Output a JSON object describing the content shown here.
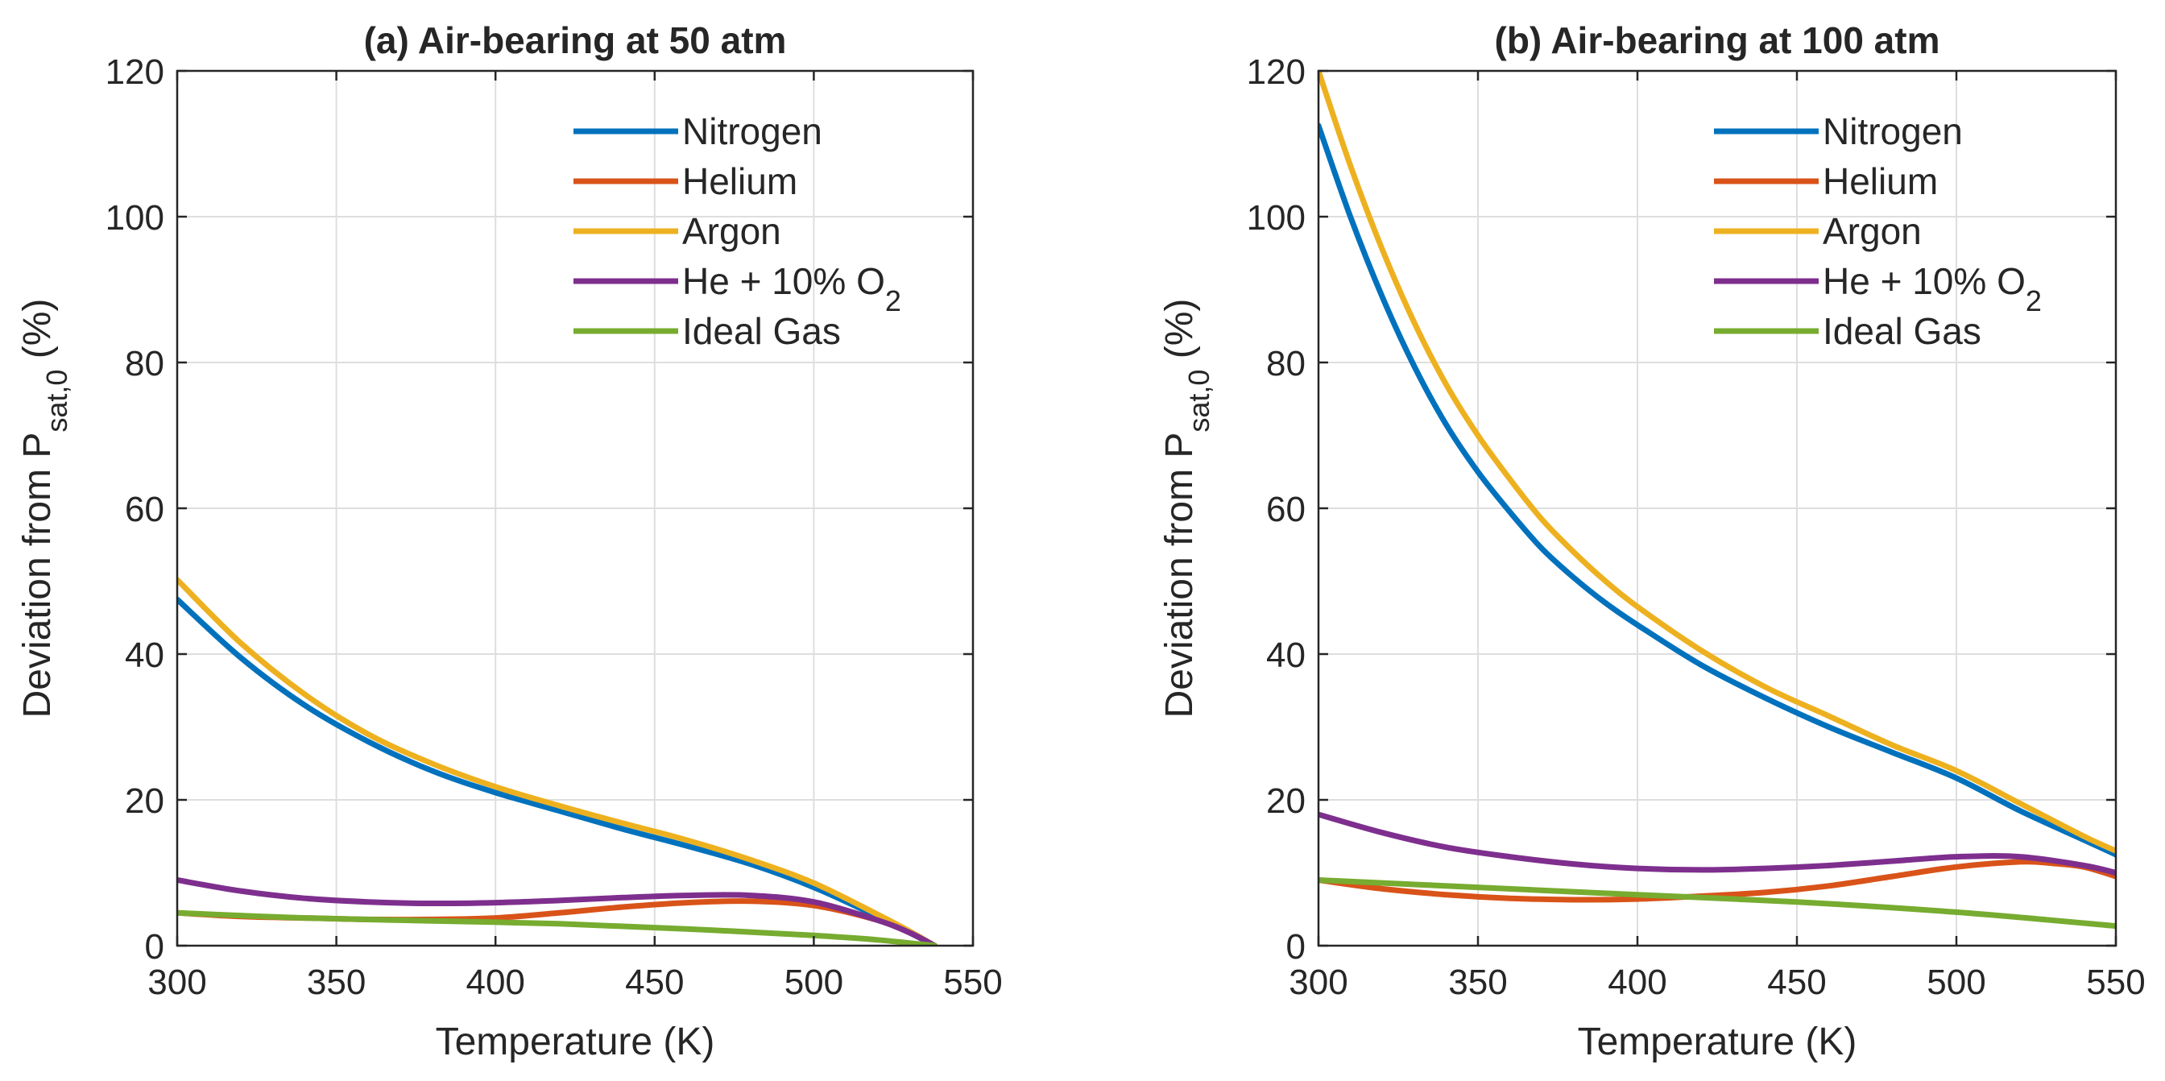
{
  "chart_data": [
    {
      "type": "line",
      "title": "(a) Air-bearing at 50 atm",
      "xlabel": "Temperature (K)",
      "ylabel": {
        "main": "Deviation from P",
        "sub": "sat,0",
        "suffix": " (%)"
      },
      "xlim": [
        300,
        550
      ],
      "ylim": [
        0,
        120
      ],
      "xticks": [
        300,
        350,
        400,
        450,
        500,
        550
      ],
      "yticks": [
        0,
        20,
        40,
        60,
        80,
        100,
        120
      ],
      "grid": true,
      "legend_position": "top-right",
      "series": [
        {
          "name": "Nitrogen",
          "color": "#0072BD",
          "x": [
            300,
            320,
            340,
            360,
            380,
            400,
            420,
            440,
            460,
            480,
            500,
            520,
            530,
            538
          ],
          "y": [
            47.5,
            39.5,
            33,
            28,
            24,
            21,
            18.5,
            16,
            13.7,
            11.2,
            8,
            4,
            1.8,
            0
          ]
        },
        {
          "name": "Helium",
          "color": "#D95319",
          "x": [
            300,
            320,
            340,
            360,
            380,
            400,
            420,
            440,
            460,
            480,
            500,
            520,
            530,
            538
          ],
          "y": [
            4.5,
            4.0,
            3.8,
            3.6,
            3.6,
            3.8,
            4.5,
            5.3,
            5.9,
            6.1,
            5.5,
            3.5,
            1.8,
            0
          ]
        },
        {
          "name": "Argon",
          "color": "#EDB120",
          "x": [
            300,
            320,
            340,
            360,
            380,
            400,
            420,
            440,
            460,
            480,
            500,
            520,
            530,
            538
          ],
          "y": [
            50.2,
            41.5,
            34.5,
            29,
            25,
            21.8,
            19.2,
            16.8,
            14.5,
            11.8,
            8.6,
            4.3,
            2,
            0
          ]
        },
        {
          "name": "He + 10% O",
          "sub": "2",
          "color": "#7E2F8E",
          "x": [
            300,
            320,
            340,
            360,
            380,
            400,
            420,
            440,
            460,
            480,
            500,
            520,
            530,
            538
          ],
          "y": [
            9,
            7.5,
            6.5,
            6,
            5.8,
            5.9,
            6.2,
            6.6,
            6.9,
            6.9,
            6,
            3.5,
            1.8,
            0
          ]
        },
        {
          "name": "Ideal Gas",
          "color": "#77AC30",
          "x": [
            300,
            340,
            380,
            420,
            460,
            500,
            520,
            538
          ],
          "y": [
            4.5,
            3.8,
            3.4,
            3,
            2.3,
            1.4,
            0.8,
            0
          ]
        }
      ]
    },
    {
      "type": "line",
      "title": "(b) Air-bearing at 100 atm",
      "xlabel": "Temperature (K)",
      "ylabel": {
        "main": "Deviation from P",
        "sub": "sat,0",
        "suffix": " (%)"
      },
      "xlim": [
        300,
        550
      ],
      "ylim": [
        0,
        120
      ],
      "xticks": [
        300,
        350,
        400,
        450,
        500,
        550
      ],
      "yticks": [
        0,
        20,
        40,
        60,
        80,
        100,
        120
      ],
      "grid": true,
      "legend_position": "top-right",
      "series": [
        {
          "name": "Nitrogen",
          "color": "#0072BD",
          "x": [
            300,
            310,
            320,
            330,
            340,
            350,
            360,
            370,
            380,
            390,
            400,
            420,
            440,
            460,
            480,
            500,
            520,
            540,
            550
          ],
          "y": [
            112.5,
            100,
            89,
            79.5,
            71.5,
            65,
            59.5,
            54.5,
            50.5,
            47,
            44,
            38.5,
            34,
            30,
            26.5,
            23,
            18.5,
            14.5,
            12.5
          ]
        },
        {
          "name": "Helium",
          "color": "#D95319",
          "x": [
            300,
            320,
            340,
            360,
            380,
            400,
            420,
            440,
            460,
            480,
            500,
            520,
            530,
            540,
            550
          ],
          "y": [
            9,
            7.8,
            7,
            6.5,
            6.3,
            6.4,
            6.8,
            7.3,
            8.2,
            9.5,
            10.8,
            11.5,
            11.3,
            10.8,
            9.5
          ]
        },
        {
          "name": "Argon",
          "color": "#EDB120",
          "x": [
            300,
            310,
            320,
            330,
            340,
            350,
            360,
            370,
            380,
            390,
            400,
            420,
            440,
            460,
            480,
            500,
            520,
            540,
            550
          ],
          "y": [
            120,
            107,
            95.5,
            85.5,
            77,
            70,
            64,
            58.5,
            54,
            50,
            46.5,
            40.5,
            35.5,
            31.5,
            27.5,
            24,
            19.5,
            15,
            13
          ]
        },
        {
          "name": "He + 10% O",
          "sub": "2",
          "color": "#7E2F8E",
          "x": [
            300,
            320,
            340,
            360,
            380,
            400,
            420,
            440,
            460,
            480,
            500,
            520,
            540,
            550
          ],
          "y": [
            18,
            15.5,
            13.5,
            12.2,
            11.2,
            10.6,
            10.4,
            10.6,
            11,
            11.6,
            12.2,
            12.2,
            11,
            10
          ]
        },
        {
          "name": "Ideal Gas",
          "color": "#77AC30",
          "x": [
            300,
            350,
            400,
            450,
            500,
            550
          ],
          "y": [
            9,
            8,
            7,
            6,
            4.6,
            2.7
          ]
        }
      ]
    }
  ]
}
